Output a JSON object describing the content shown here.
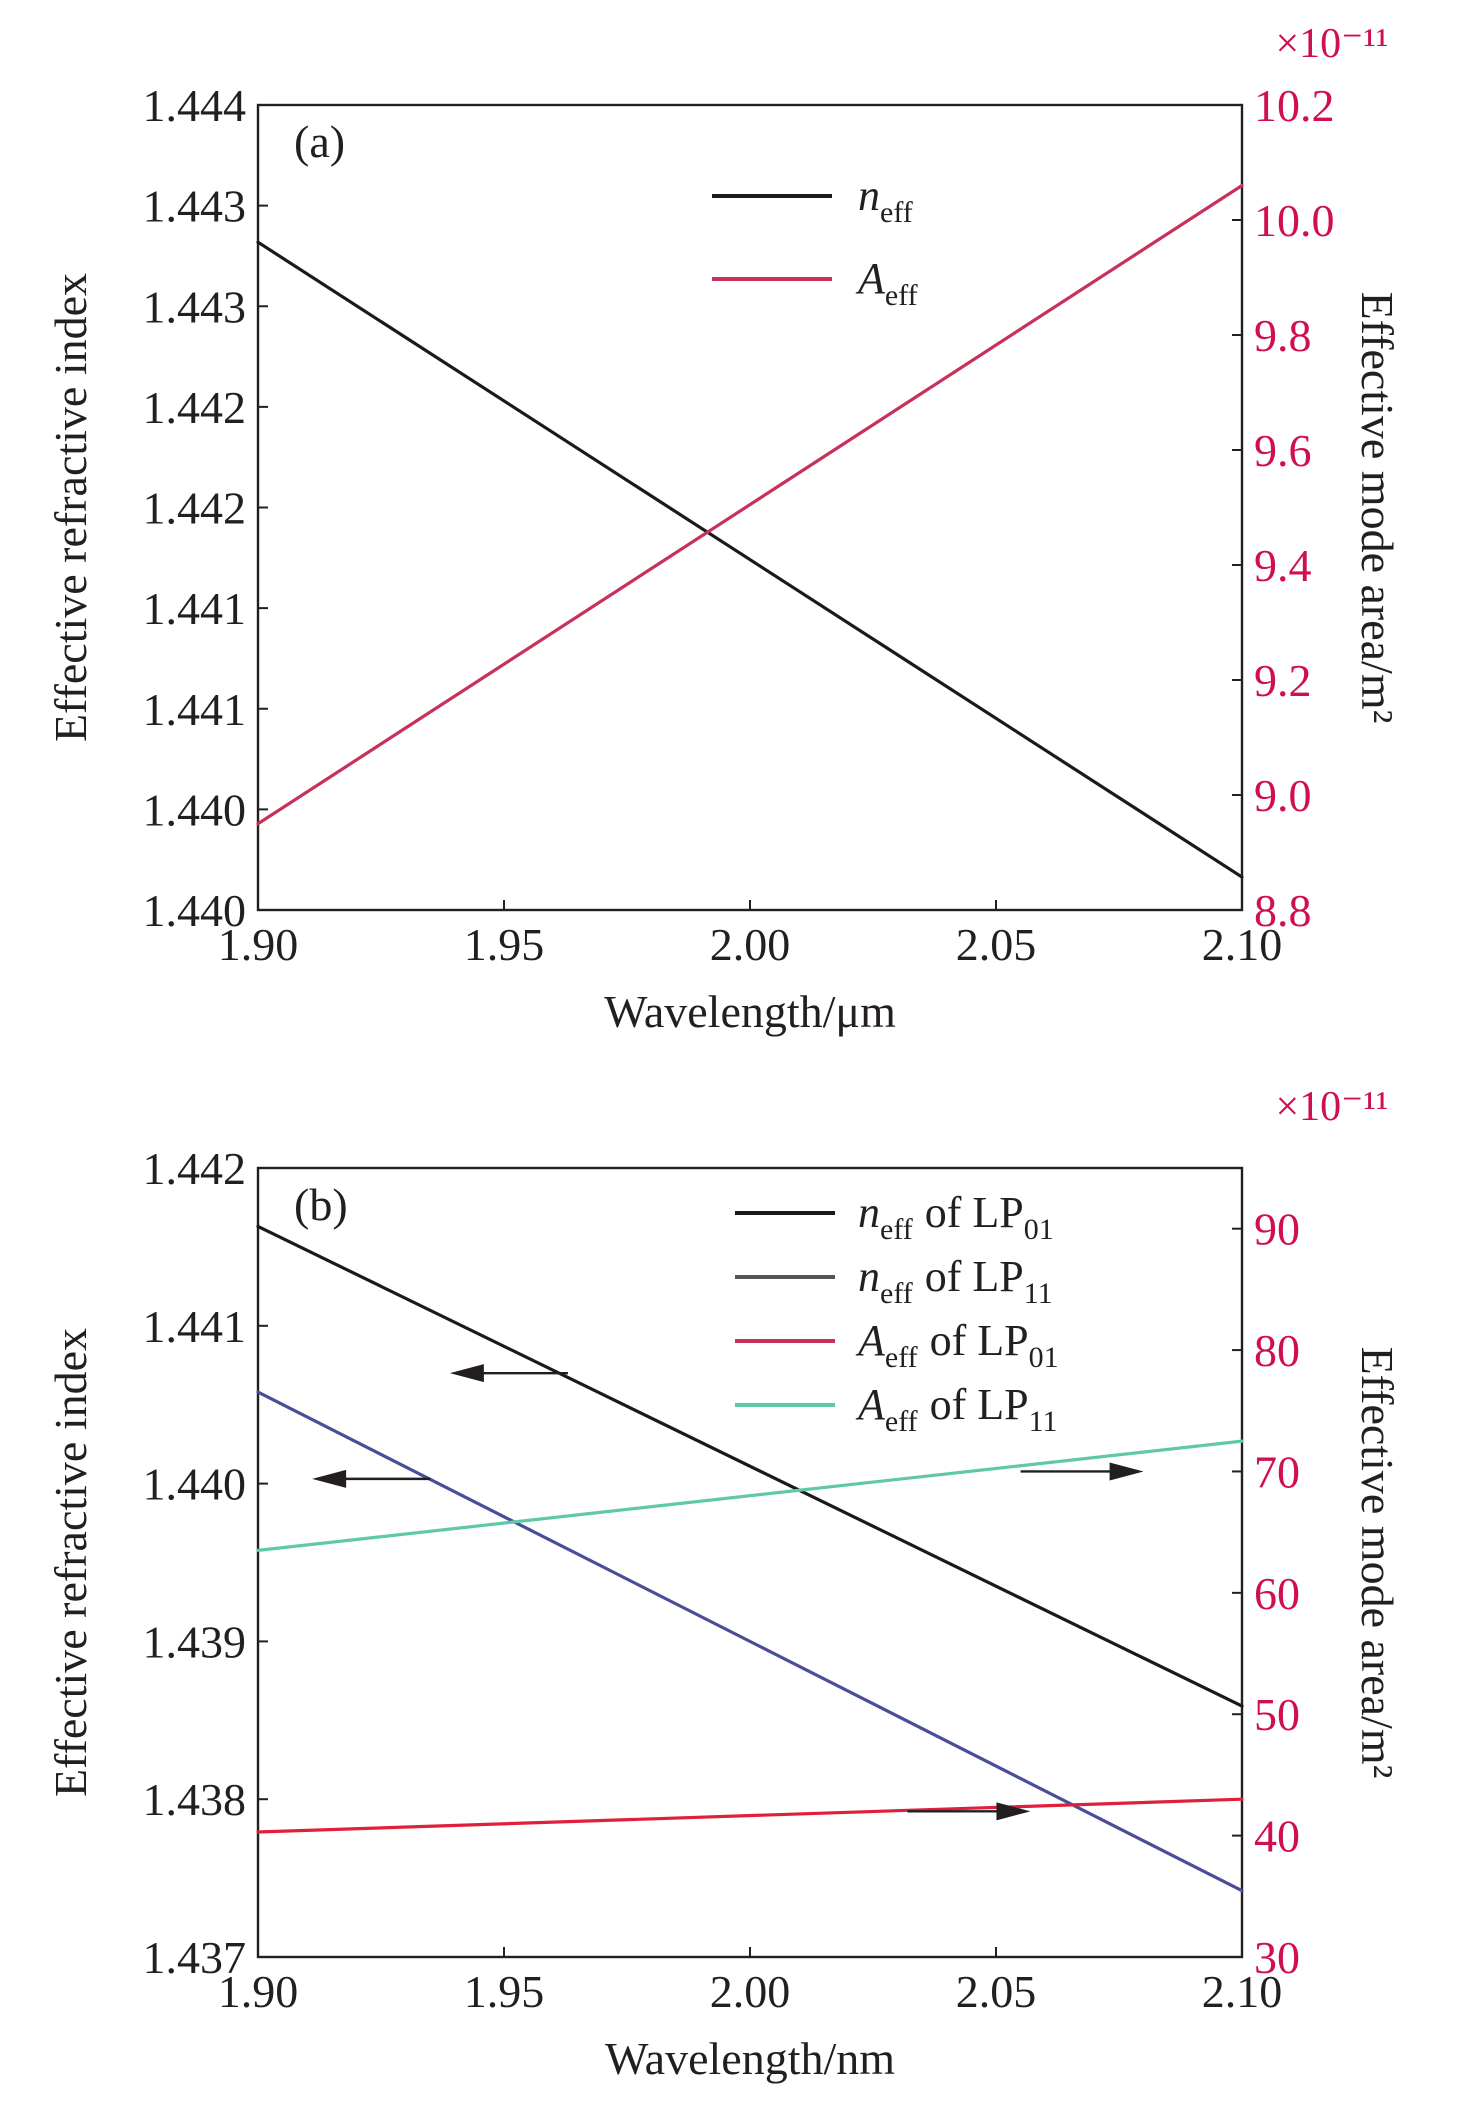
{
  "chart_data": [
    {
      "type": "line",
      "panel_label": "(a)",
      "xlabel": "Wavelength/μm",
      "x_ticks": [
        "1.90",
        "1.95",
        "2.00",
        "2.05",
        "2.10"
      ],
      "xlim": [
        1.9,
        2.1
      ],
      "ylabel_left": "Effective refractive index",
      "y_left_ticks": [
        "1.440",
        "1.440",
        "1.441",
        "1.441",
        "1.442",
        "1.442",
        "1.443",
        "1.443",
        "1.444"
      ],
      "ylim_left": [
        1.44,
        1.4444
      ],
      "ylabel_right": "Effective mode area/m²",
      "y_right_ticks": [
        "8.8",
        "9.0",
        "9.2",
        "9.4",
        "9.6",
        "9.8",
        "10.0",
        "10.2"
      ],
      "ylim_right": [
        8.8,
        10.2
      ],
      "y_right_multiplier": "×10⁻¹¹",
      "legend": {
        "position": "top-center"
      },
      "series": [
        {
          "name": "neff",
          "name_main": "n",
          "name_sub": "eff",
          "axis": "left",
          "color": "#1a1a1a",
          "x": [
            1.9,
            2.1
          ],
          "y": [
            1.44365,
            1.44018
          ]
        },
        {
          "name": "Aeff",
          "name_main": "A",
          "name_sub": "eff",
          "axis": "right",
          "color": "#c8325a",
          "x": [
            1.9,
            2.1
          ],
          "y": [
            8.95,
            10.06
          ]
        }
      ],
      "arrows": []
    },
    {
      "type": "line",
      "panel_label": "(b)",
      "xlabel": "Wavelength/nm",
      "x_ticks": [
        "1.90",
        "1.95",
        "2.00",
        "2.05",
        "2.10"
      ],
      "xlim": [
        1.9,
        2.1
      ],
      "ylabel_left": "Effective refractive index",
      "y_left_ticks": [
        "1.437",
        "1.438",
        "1.439",
        "1.440",
        "1.441",
        "1.442"
      ],
      "ylim_left": [
        1.437,
        1.442
      ],
      "ylabel_right": "Effective mode area/m²",
      "y_right_ticks": [
        "30",
        "40",
        "50",
        "60",
        "70",
        "80",
        "90"
      ],
      "ylim_right": [
        30,
        95
      ],
      "y_right_multiplier": "×10⁻¹¹",
      "legend": {
        "position": "top-right"
      },
      "series": [
        {
          "name": "neff of LP01",
          "name_main": "n",
          "name_sub": "eff",
          "mode_main": "of LP",
          "mode_sub": "01",
          "axis": "left",
          "color": "#1a1a1a",
          "legend_color": "#1a1a1a",
          "x": [
            1.9,
            2.1
          ],
          "y": [
            1.44163,
            1.43859
          ]
        },
        {
          "name": "neff of LP11",
          "name_main": "n",
          "name_sub": "eff",
          "mode_main": "of LP",
          "mode_sub": "11",
          "axis": "left",
          "color": "#4a4e99",
          "legend_color": "#555555",
          "x": [
            1.9,
            2.1
          ],
          "y": [
            1.44058,
            1.43742
          ]
        },
        {
          "name": "Aeff of LP01",
          "name_main": "A",
          "name_sub": "eff",
          "mode_main": "of LP",
          "mode_sub": "01",
          "axis": "right",
          "color": "#e0203a",
          "legend_color": "#c8325a",
          "x": [
            1.9,
            2.1
          ],
          "y": [
            40.3,
            43.0
          ]
        },
        {
          "name": "Aeff of LP11",
          "name_main": "A",
          "name_sub": "eff",
          "mode_main": "of LP",
          "mode_sub": "11",
          "axis": "right",
          "color": "#5ec8a8",
          "legend_color": "#5ec8a8",
          "x": [
            1.9,
            2.1
          ],
          "y": [
            63.5,
            72.5
          ]
        }
      ],
      "arrows": [
        {
          "target": "neff of LP01",
          "direction": "left",
          "x_from": 1.963,
          "x_to": 1.939,
          "axis": "left",
          "y": 1.4407
        },
        {
          "target": "neff of LP11",
          "direction": "left",
          "x_from": 1.935,
          "x_to": 1.911,
          "axis": "left",
          "y": 1.44003
        },
        {
          "target": "Aeff of LP11",
          "direction": "right",
          "x_from": 2.055,
          "x_to": 2.08,
          "axis": "right",
          "y": 70.0
        },
        {
          "target": "Aeff of LP01",
          "direction": "right",
          "x_from": 2.032,
          "x_to": 2.057,
          "axis": "right",
          "y": 42.0
        }
      ]
    }
  ]
}
